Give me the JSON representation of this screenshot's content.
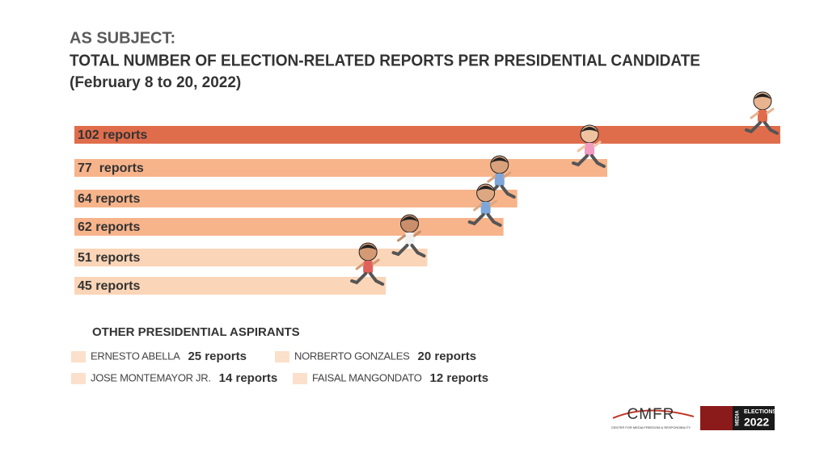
{
  "chart_data": {
    "type": "bar",
    "title": "AS SUBJECT:",
    "subtitle": "TOTAL NUMBER OF ELECTION-RELATED REPORTS PER PRESIDENTIAL CANDIDATE",
    "date_range": "(February 8 to 20, 2022)",
    "values": [
      102,
      77,
      64,
      62,
      51,
      45
    ],
    "value_labels": [
      "102 reports",
      "77  reports",
      "64 reports",
      "62 reports",
      "51 reports",
      "45 reports"
    ],
    "colors": [
      "#df6d4c",
      "#f7b48b",
      "#f7b48b",
      "#f7b48b",
      "#fbd5b7",
      "#fbd5b7"
    ],
    "xlim": [
      0,
      102
    ],
    "others": {
      "title": "OTHER PRESIDENTIAL ASPIRANTS",
      "color": "#fbe0cb",
      "names": [
        "ERNESTO ABELLA",
        "NORBERTO GONZALES",
        "JOSE MONTEMAYOR JR.",
        "FAISAL MANGONDATO"
      ],
      "values": [
        25,
        20,
        14,
        12
      ],
      "value_labels": [
        "25 reports",
        "20 reports",
        "14 reports",
        "12 reports"
      ]
    },
    "logos": {
      "cmfr": "CMFR",
      "cmfr_sub": "CENTER FOR MEDIA FREEDOM & RESPONSIBILITY",
      "media": "MEDIA",
      "elections": "ELECTIONS",
      "year": "2022"
    }
  }
}
